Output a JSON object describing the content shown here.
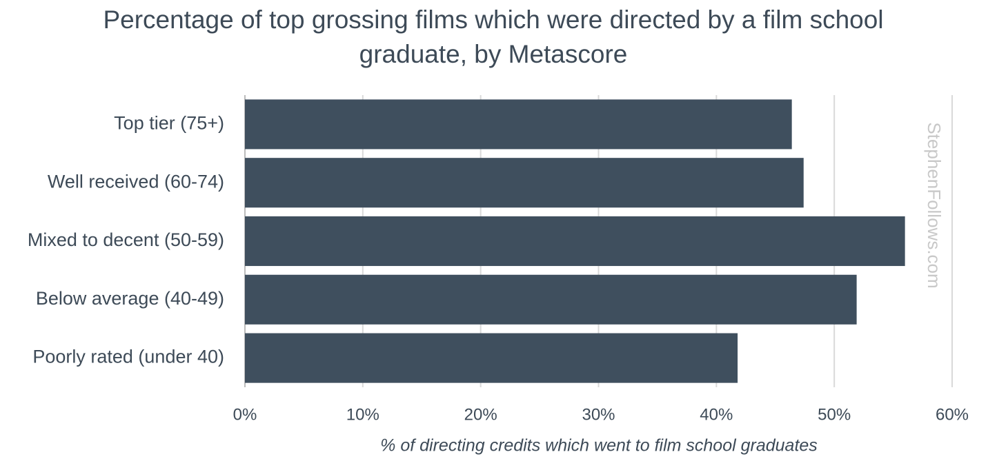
{
  "chart_data": {
    "type": "hbar",
    "title": "Percentage of top grossing films which were directed by a film school graduate, by Metascore",
    "x_label": "% of directing credits which went to film school graduates",
    "watermark": "StephenFollows.com",
    "categories": [
      "Top tier (75+)",
      "Well received (60-74)",
      "Mixed to decent (50-59)",
      "Below average (40-49)",
      "Poorly rated (under 40)"
    ],
    "values": [
      46.4,
      47.4,
      56.0,
      51.9,
      41.8
    ],
    "color": "#3f4f5e",
    "xlim": [
      0,
      60
    ],
    "xticks": [
      {
        "value": 0,
        "label": "0%"
      },
      {
        "value": 10,
        "label": "10%"
      },
      {
        "value": 20,
        "label": "20%"
      },
      {
        "value": 30,
        "label": "30%"
      },
      {
        "value": 40,
        "label": "40%"
      },
      {
        "value": 50,
        "label": "50%"
      },
      {
        "value": 60,
        "label": "60%"
      }
    ],
    "grid": true
  }
}
